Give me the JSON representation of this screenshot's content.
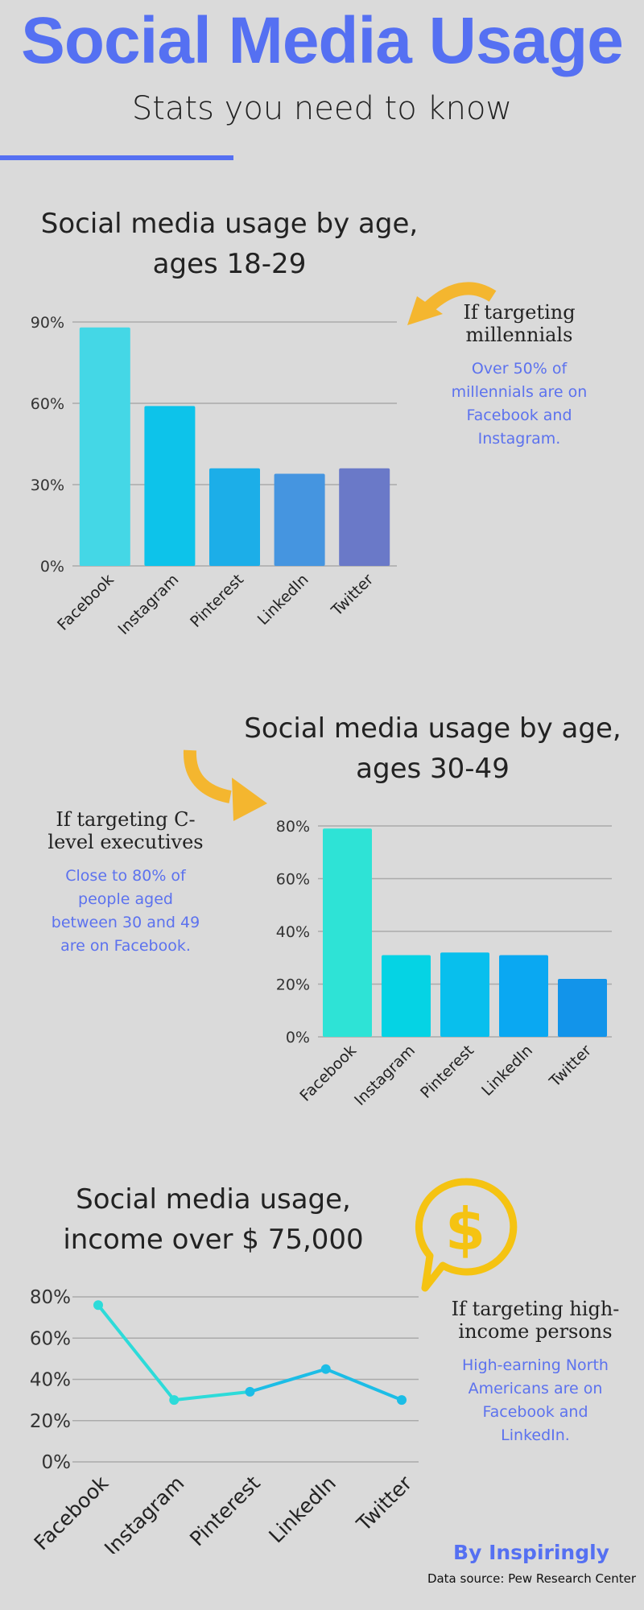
{
  "header": {
    "title": "Social Media Usage",
    "subtitle": "Stats you need to know",
    "accent_color": "#5570f2"
  },
  "chart_data": [
    {
      "type": "bar",
      "title_line1": "Social media usage by age,",
      "title_line2": "ages 18-29",
      "categories": [
        "Facebook",
        "Instagram",
        "Pinterest",
        "LinkedIn",
        "Twitter"
      ],
      "values": [
        88,
        59,
        36,
        34,
        36
      ],
      "yticks": [
        "0%",
        "30%",
        "60%",
        "90%"
      ],
      "ylim": [
        0,
        90
      ],
      "colors": [
        "#44d7e6",
        "#0dc3ea",
        "#1caee8",
        "#4595e0",
        "#6a79c8"
      ]
    },
    {
      "type": "bar",
      "title_line1": "Social media usage by age,",
      "title_line2": "ages 30-49",
      "categories": [
        "Facebook",
        "Instagram",
        "Pinterest",
        "LinkedIn",
        "Twitter"
      ],
      "values": [
        79,
        31,
        32,
        31,
        22
      ],
      "yticks": [
        "0%",
        "20%",
        "40%",
        "60%",
        "80%"
      ],
      "ylim": [
        0,
        80
      ],
      "colors": [
        "#2ee3d6",
        "#05d3e4",
        "#08bfed",
        "#0aa8f2",
        "#1294ea"
      ]
    },
    {
      "type": "line",
      "title_line1": "Social media usage,",
      "title_line2": "income over $ 75,000",
      "categories": [
        "Facebook",
        "Instagram",
        "Pinterest",
        "LinkedIn",
        "Twitter"
      ],
      "values": [
        76,
        30,
        34,
        45,
        30
      ],
      "yticks": [
        "0%",
        "20%",
        "40%",
        "60%",
        "80%"
      ],
      "ylim": [
        0,
        80
      ],
      "colors": [
        "#2ddbd9",
        "#1cbde6"
      ]
    }
  ],
  "notes": {
    "millennials": {
      "heading_line1": "If targeting",
      "heading_line2": "millennials",
      "body": [
        "Over 50% of",
        "millennials are on",
        "Facebook and",
        "Instagram."
      ]
    },
    "executives": {
      "heading_line1": "If targeting C-",
      "heading_line2": "level executives",
      "body": [
        "Close to 80% of",
        "people aged",
        "between 30 and 49",
        "are on Facebook."
      ]
    },
    "high_income": {
      "heading_line1": "If targeting high-",
      "heading_line2": "income persons",
      "body": [
        "High-earning North",
        "Americans are on",
        "Facebook and",
        "LinkedIn."
      ]
    }
  },
  "icons": {
    "arrow": "curved-arrow-icon",
    "dollar": "dollar-speech-bubble-icon",
    "icon_color": "#f4b62f",
    "dollar_color": "#f5c312"
  },
  "footer": {
    "brand": "By Inspiringly",
    "source": "Data source: Pew Research Center"
  }
}
